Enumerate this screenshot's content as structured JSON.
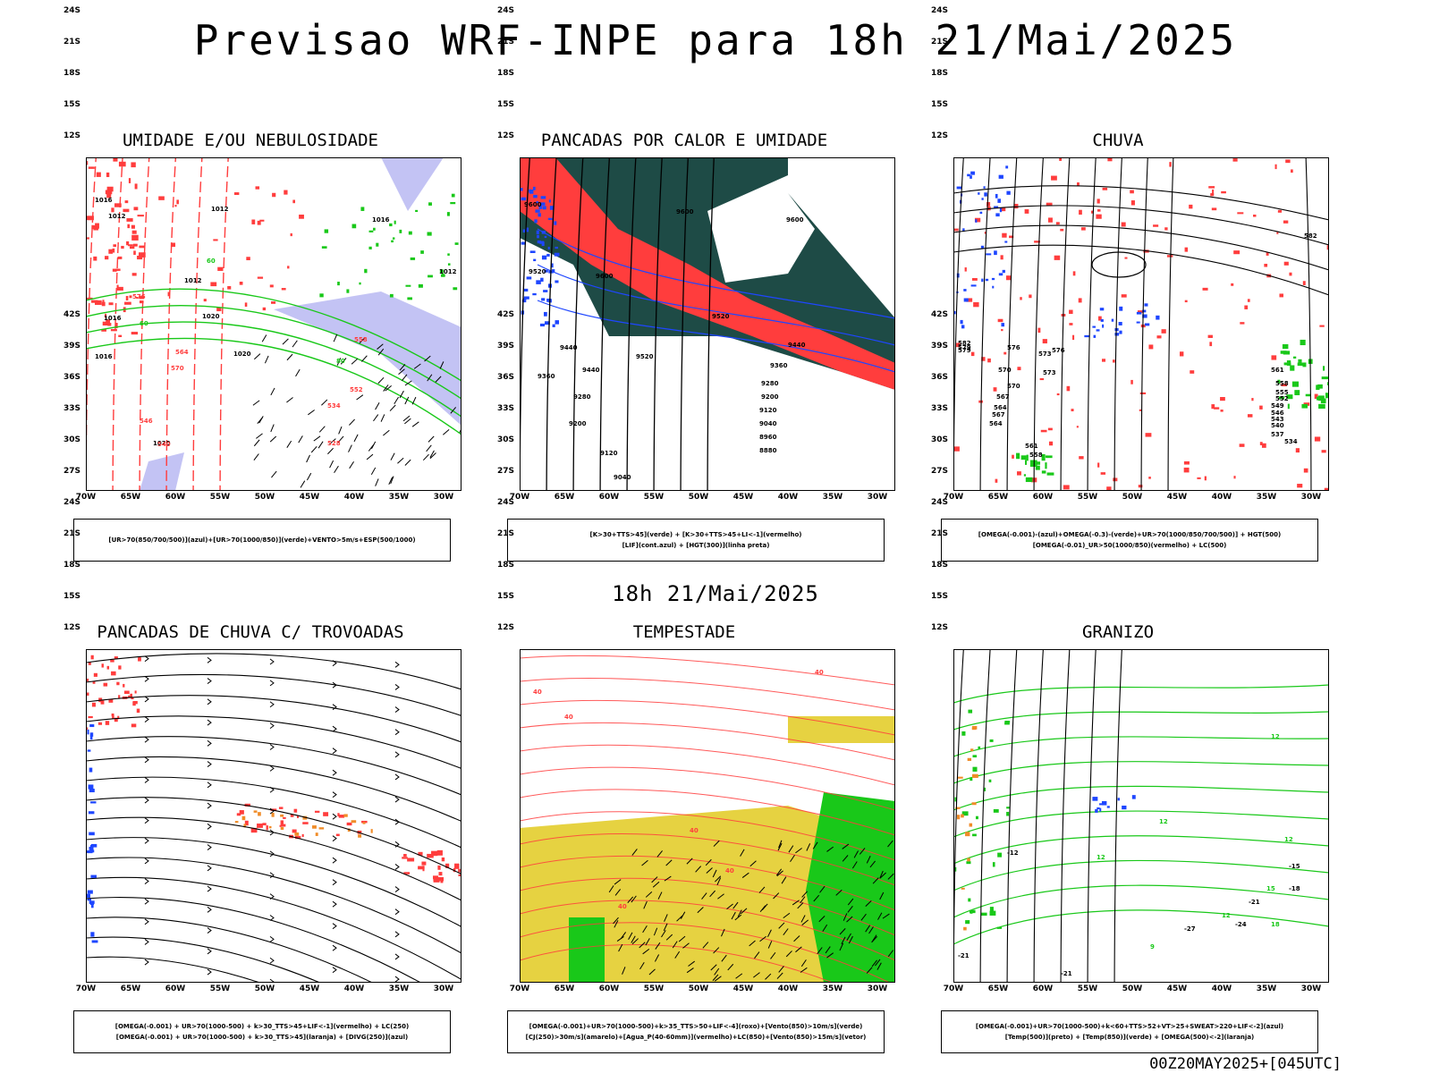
{
  "title": "Previsao WRF-INPE  para 18h 21/Mai/2025",
  "mid_time": "18h 21/Mai/2025",
  "run_label": "00Z20MAY2025+[045UTC]",
  "lat_ticks": [
    "12S",
    "15S",
    "18S",
    "21S",
    "24S",
    "27S",
    "30S",
    "33S",
    "36S",
    "39S",
    "42S"
  ],
  "lon_ticks": [
    "70W",
    "65W",
    "60W",
    "55W",
    "50W",
    "45W",
    "40W",
    "35W",
    "30W"
  ],
  "colors": {
    "red": "#ff3d3d",
    "green": "#19c819",
    "blue": "#1e46ff",
    "lavender": "#aaaaf0",
    "darkteal": "#1e4b46",
    "yellow": "#e6d241",
    "orange": "#f08c28"
  },
  "panels": [
    {
      "title": "UMIDADE E/OU NEBULOSIDADE",
      "legend": [
        "[UR>70(850/700/500)](azul)+[UR>70(1000/850)](verde)+VENTO>5m/s+ESP(500/1000)"
      ],
      "contour_labels": [
        "1012",
        "1012",
        "1016",
        "1012",
        "1020",
        "1016",
        "1020",
        "1016",
        "1012",
        "1020",
        "1016",
        "576",
        "570",
        "564",
        "558",
        "552",
        "546",
        "540",
        "534",
        "528",
        "60",
        "60",
        "80"
      ]
    },
    {
      "title": "PANCADAS POR CALOR E UMIDADE",
      "legend": [
        "[K>30+TTS>45](verde) + [K>30+TTS>45+LI<-1](vermelho)",
        "[LIF](cont.azul) + [HGT(300)](linha preta)"
      ],
      "contour_labels": [
        "9600",
        "9600",
        "9600",
        "9520",
        "9600",
        "9520",
        "9440",
        "9520",
        "9440",
        "9440",
        "9360",
        "9360",
        "9280",
        "9280",
        "9200",
        "9200",
        "9120",
        "9120",
        "9040",
        "9040",
        "8960",
        "8880"
      ]
    },
    {
      "title": "CHUVA",
      "legend": [
        "[OMEGA(-0.001)-(azul)+OMEGA(-0.3)-(verde)+UR>70(1000/850/700/500)] + HGT(500)",
        "[OMEGA(-0.01)_UR>50(1000/850)(vermelho) + LC(500)"
      ],
      "contour_labels": [
        "582",
        "582",
        "579",
        "576",
        "573",
        "570",
        "567",
        "564",
        "561",
        "558",
        "555",
        "552",
        "549",
        "546",
        "543",
        "540",
        "537",
        "534",
        "579",
        "576",
        "573",
        "570",
        "567",
        "564",
        "561",
        "558"
      ]
    },
    {
      "title": "PANCADAS DE CHUVA C/ TROVOADAS",
      "legend": [
        "[OMEGA(-0.001) + UR>70(1000-500) + k>30_TTS>45+LIF<-1](vermelho) + LC(250)",
        "[OMEGA(-0.001) + UR>70(1000-500) + k>30_TTS>45](laranja) + [DIVG(250)](azul)"
      ],
      "contour_labels": []
    },
    {
      "title": "TEMPESTADE",
      "legend": [
        "[OMEGA(-0.001)+UR>70(1000-500)+k>35_TTS>50+LIF<-4](roxo)+[Vento(850)>10m/s](verde)",
        "[CJ(250)>30m/s](amarelo)+[Agua_P(40-60mm)](vermelho)+LC(850)+[Vento(850)>15m/s](vetor)"
      ],
      "contour_labels": [
        "40",
        "40",
        "40",
        "40",
        "40",
        "40"
      ]
    },
    {
      "title": "GRANIZO",
      "legend": [
        "[OMEGA(-0.001)+UR>70(1000-500)+k<60+TTS>52+VT>25+SWEAT>220+LIF<-2](azul)",
        "[Temp(500)](preto) + [Temp(850)](verde) + [OMEGA(500)<-2](laranja)"
      ],
      "contour_labels": [
        "12",
        "12",
        "12",
        "12",
        "-12",
        "-15",
        "-18",
        "-21",
        "-24",
        "-27",
        "-21",
        "-21",
        "15",
        "18",
        "12",
        "9"
      ]
    }
  ]
}
